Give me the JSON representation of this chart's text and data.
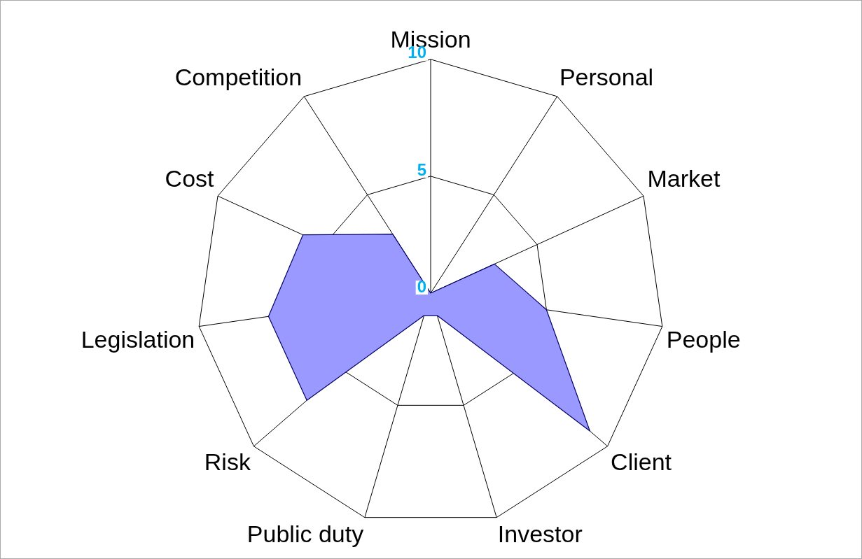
{
  "chart_data": {
    "type": "radar",
    "categories": [
      "Mission",
      "Personal",
      "Market",
      "People",
      "Client",
      "Investor",
      "Public duty",
      "Risk",
      "Legislation",
      "Cost",
      "Competition"
    ],
    "series": [
      {
        "color": "#9999ff",
        "values": [
          0,
          0,
          3,
          5,
          9,
          1,
          1,
          7,
          7,
          6,
          3
        ]
      }
    ],
    "ylim": [
      0,
      10
    ],
    "yticks": [
      0,
      5,
      10
    ],
    "grid": true,
    "marker": "none"
  }
}
